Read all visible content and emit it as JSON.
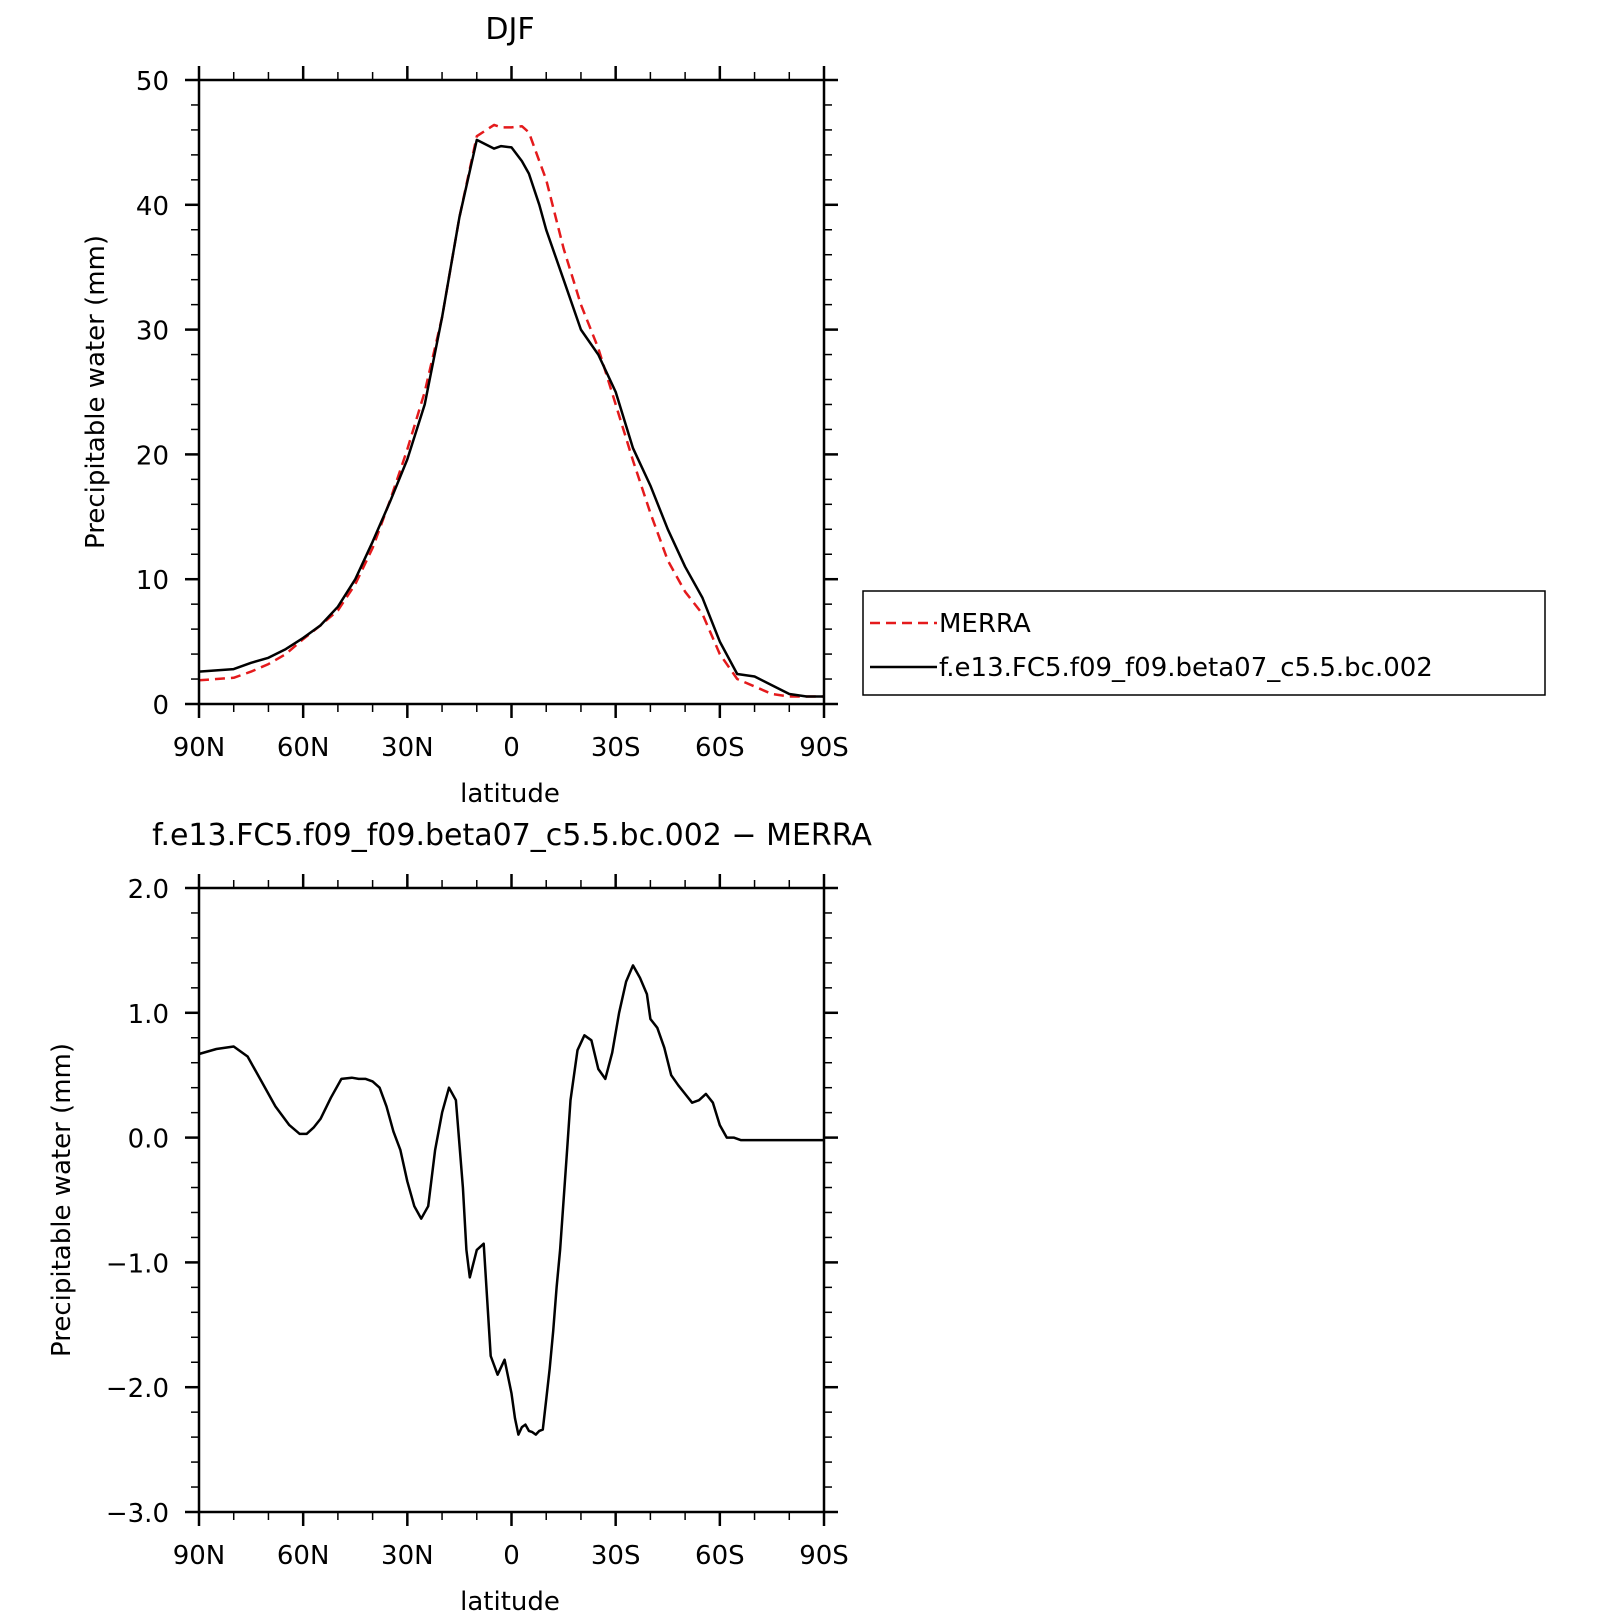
{
  "chart_data": [
    {
      "type": "line",
      "title": "DJF",
      "xlabel": "latitude",
      "ylabel": "Precipitable water (mm)",
      "x_tick_labels": [
        "90N",
        "60N",
        "30N",
        "0",
        "30S",
        "60S",
        "90S"
      ],
      "x_tick_values": [
        90,
        60,
        30,
        0,
        -30,
        -60,
        -90
      ],
      "y_tick_labels": [
        "0",
        "10",
        "20",
        "30",
        "40",
        "50"
      ],
      "y_tick_values": [
        0,
        10,
        20,
        30,
        40,
        50
      ],
      "xlim": [
        90,
        -90
      ],
      "ylim": [
        0,
        50
      ],
      "legend_position": "right, outside plot",
      "series": [
        {
          "name": "MERRA",
          "color": "#e41a1c",
          "dash": "dashed",
          "x": [
            90,
            80,
            75,
            70,
            65,
            60,
            55,
            50,
            45,
            40,
            35,
            30,
            25,
            20,
            15,
            10,
            5,
            3,
            0,
            -3,
            -5,
            -8,
            -10,
            -15,
            -20,
            -25,
            -30,
            -35,
            -40,
            -45,
            -50,
            -55,
            -60,
            -65,
            -70,
            -75,
            -80,
            -85,
            -88,
            -90
          ],
          "y": [
            1.9,
            2.1,
            2.6,
            3.2,
            4.0,
            5.2,
            6.3,
            7.5,
            9.6,
            12.5,
            16.3,
            20.4,
            25.0,
            31.0,
            39.0,
            45.5,
            46.4,
            46.2,
            46.2,
            46.3,
            45.8,
            43.5,
            42.0,
            36.5,
            32.0,
            28.5,
            24.0,
            19.5,
            15.3,
            11.5,
            9.0,
            7.2,
            4.0,
            2.0,
            1.4,
            0.8,
            0.6,
            0.6,
            0.6,
            0.6
          ]
        },
        {
          "name": "f.e13.FC5.f09_f09.beta07_c5.5.bc.002",
          "color": "#000000",
          "dash": "solid",
          "x": [
            90,
            80,
            75,
            70,
            65,
            60,
            55,
            50,
            45,
            40,
            35,
            30,
            25,
            20,
            15,
            10,
            5,
            3,
            0,
            -3,
            -5,
            -8,
            -10,
            -15,
            -20,
            -25,
            -30,
            -35,
            -40,
            -45,
            -50,
            -55,
            -60,
            -65,
            -70,
            -75,
            -80,
            -85,
            -88,
            -90
          ],
          "y": [
            2.6,
            2.8,
            3.3,
            3.7,
            4.4,
            5.3,
            6.3,
            7.8,
            10.0,
            13.0,
            16.2,
            19.6,
            24.0,
            31.0,
            39.0,
            45.2,
            44.5,
            44.7,
            44.6,
            43.5,
            42.5,
            40.0,
            38.0,
            34.0,
            30.0,
            28.0,
            25.0,
            20.5,
            17.5,
            14.0,
            11.0,
            8.5,
            5.0,
            2.4,
            2.2,
            1.5,
            0.8,
            0.6,
            0.6,
            0.6
          ]
        }
      ]
    },
    {
      "type": "line",
      "title": "f.e13.FC5.f09_f09.beta07_c5.5.bc.002 − MERRA",
      "xlabel": "latitude",
      "ylabel": "Precipitable water (mm)",
      "x_tick_labels": [
        "90N",
        "60N",
        "30N",
        "0",
        "30S",
        "60S",
        "90S"
      ],
      "x_tick_values": [
        90,
        60,
        30,
        0,
        -30,
        -60,
        -90
      ],
      "y_tick_labels": [
        "−3.0",
        "−2.0",
        "−1.0",
        "0.0",
        "1.0",
        "2.0"
      ],
      "y_tick_values": [
        -3,
        -2,
        -1,
        0,
        1,
        2
      ],
      "xlim": [
        90,
        -90
      ],
      "ylim": [
        -3,
        2
      ],
      "series": [
        {
          "color": "#000000",
          "dash": "solid",
          "x": [
            90,
            85,
            80,
            76,
            72,
            68,
            64,
            61,
            59,
            57,
            55,
            52,
            49,
            46,
            44,
            42,
            40,
            38,
            36,
            34,
            32,
            30,
            28,
            27,
            26,
            24,
            22,
            20,
            18,
            16,
            14,
            13,
            12,
            10,
            8,
            7,
            6,
            4,
            2,
            0,
            -1,
            -2,
            -3,
            -4,
            -5,
            -6,
            -7,
            -8,
            -9,
            -10,
            -11,
            -12,
            -13,
            -14,
            -15,
            -16,
            -17,
            -19,
            -21,
            -23,
            -25,
            -27,
            -29,
            -31,
            -33,
            -35,
            -37,
            -39,
            -40,
            -42,
            -44,
            -46,
            -48,
            -50,
            -52,
            -54,
            -56,
            -58,
            -60,
            -62,
            -64,
            -66,
            -68,
            -70,
            -72,
            -74,
            -76,
            -78,
            -80,
            -82,
            -84,
            -86,
            -88,
            -90
          ],
          "y": [
            0.67,
            0.71,
            0.73,
            0.65,
            0.45,
            0.25,
            0.1,
            0.03,
            0.03,
            0.08,
            0.15,
            0.32,
            0.47,
            0.48,
            0.47,
            0.47,
            0.45,
            0.4,
            0.25,
            0.05,
            -0.1,
            -0.35,
            -0.55,
            -0.6,
            -0.65,
            -0.55,
            -0.1,
            0.2,
            0.4,
            0.3,
            -0.4,
            -0.9,
            -1.12,
            -0.9,
            -0.85,
            -1.3,
            -1.75,
            -1.9,
            -1.78,
            -2.05,
            -2.25,
            -2.38,
            -2.32,
            -2.3,
            -2.35,
            -2.36,
            -2.38,
            -2.35,
            -2.34,
            -2.1,
            -1.85,
            -1.55,
            -1.2,
            -0.9,
            -0.5,
            -0.1,
            0.3,
            0.7,
            0.82,
            0.78,
            0.55,
            0.47,
            0.68,
            1.0,
            1.25,
            1.38,
            1.28,
            1.15,
            0.95,
            0.88,
            0.72,
            0.5,
            0.42,
            0.35,
            0.28,
            0.3,
            0.35,
            0.28,
            0.1,
            0.0,
            0.0,
            -0.02,
            -0.02,
            -0.02,
            -0.02,
            -0.02,
            -0.02,
            -0.02,
            -0.02,
            -0.02,
            -0.02,
            -0.02,
            -0.02,
            -0.02
          ]
        }
      ]
    }
  ]
}
